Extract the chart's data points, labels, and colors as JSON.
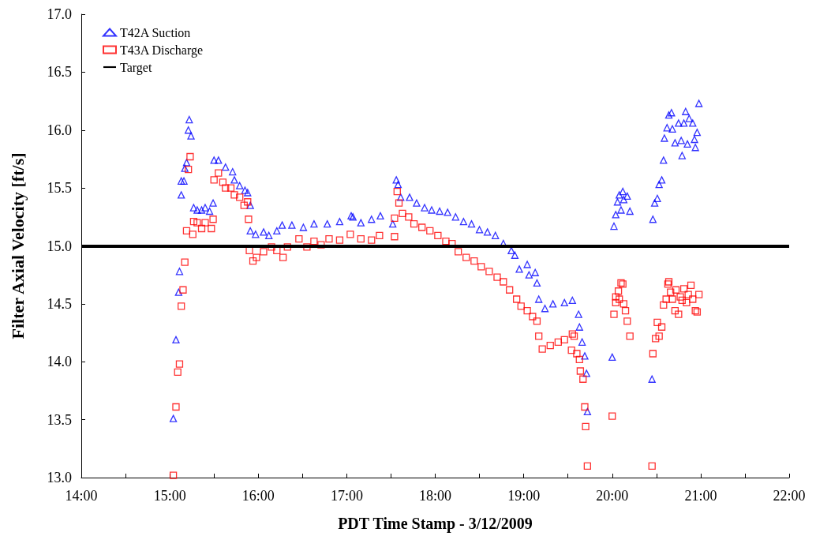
{
  "chart_data": {
    "type": "scatter",
    "xlabel": "PDT Time Stamp - 3/12/2009",
    "ylabel": "Filter Axial Velocity [ft/s]",
    "xlim": [
      14,
      22
    ],
    "xticks": [
      {
        "value": 14,
        "label": "14:00"
      },
      {
        "value": 14.5,
        "label": null
      },
      {
        "value": 15,
        "label": "15:00"
      },
      {
        "value": 15.5,
        "label": null
      },
      {
        "value": 16,
        "label": "16:00"
      },
      {
        "value": 16.5,
        "label": null
      },
      {
        "value": 17,
        "label": "17:00"
      },
      {
        "value": 17.5,
        "label": null
      },
      {
        "value": 18,
        "label": "18:00"
      },
      {
        "value": 18.5,
        "label": null
      },
      {
        "value": 19,
        "label": "19:00"
      },
      {
        "value": 19.5,
        "label": null
      },
      {
        "value": 20,
        "label": "20:00"
      },
      {
        "value": 20.5,
        "label": null
      },
      {
        "value": 21,
        "label": "21:00"
      },
      {
        "value": 21.5,
        "label": null
      },
      {
        "value": 22,
        "label": "22:00"
      }
    ],
    "ylim": [
      13,
      17
    ],
    "yticks": [
      {
        "value": 13,
        "label": "13.0"
      },
      13.5,
      {
        "value": 14,
        "label": "14.0"
      },
      14.5,
      {
        "value": 15,
        "label": "15.0"
      },
      15.5,
      {
        "value": 16,
        "label": "16.0"
      },
      16.5,
      {
        "value": 17,
        "label": "17.0"
      }
    ],
    "legend": "top left",
    "grid": false,
    "ref_lines": [
      {
        "axis": "y",
        "value": 15,
        "label": "Target",
        "color": "#000000"
      }
    ],
    "series": [
      {
        "name": "T42A Suction",
        "color": "#0000ff",
        "marker": "triangle",
        "x": [
          15.04,
          15.07,
          15.1,
          15.11,
          15.13,
          15.13,
          15.16,
          15.17,
          15.19,
          15.21,
          15.22,
          15.24,
          15.27,
          15.31,
          15.36,
          15.4,
          15.45,
          15.49,
          15.5,
          15.55,
          15.63,
          15.71,
          15.73,
          15.79,
          15.85,
          15.88,
          15.91,
          15.91,
          15.97,
          16.06,
          16.12,
          16.21,
          16.27,
          16.38,
          16.51,
          16.63,
          16.78,
          16.92,
          17.05,
          17.07,
          17.16,
          17.28,
          17.38,
          17.52,
          17.56,
          17.58,
          17.61,
          17.71,
          17.79,
          17.88,
          17.96,
          18.05,
          18.14,
          18.23,
          18.32,
          18.41,
          18.5,
          18.59,
          18.68,
          18.77,
          18.86,
          18.9,
          18.95,
          19.04,
          19.06,
          19.13,
          19.15,
          19.17,
          19.24,
          19.33,
          19.46,
          19.55,
          19.62,
          19.63,
          19.66,
          19.69,
          19.71,
          19.72,
          20.0,
          20.02,
          20.04,
          20.06,
          20.08,
          20.1,
          20.12,
          20.13,
          20.17,
          20.2,
          20.45,
          20.46,
          20.48,
          20.51,
          20.53,
          20.56,
          20.58,
          20.59,
          20.62,
          20.64,
          20.67,
          20.68,
          20.71,
          20.75,
          20.78,
          20.79,
          20.81,
          20.83,
          20.85,
          20.87,
          20.91,
          20.93,
          20.94,
          20.96,
          20.98
        ],
        "values": [
          13.51,
          14.19,
          14.6,
          14.78,
          15.44,
          15.56,
          15.56,
          15.67,
          15.72,
          16.0,
          16.09,
          15.95,
          15.33,
          15.31,
          15.31,
          15.33,
          15.3,
          15.37,
          15.74,
          15.74,
          15.68,
          15.64,
          15.57,
          15.52,
          15.48,
          15.46,
          15.35,
          15.13,
          15.1,
          15.12,
          15.09,
          15.13,
          15.18,
          15.18,
          15.16,
          15.19,
          15.19,
          15.21,
          15.26,
          15.25,
          15.2,
          15.23,
          15.26,
          15.19,
          15.57,
          15.53,
          15.42,
          15.42,
          15.37,
          15.33,
          15.31,
          15.3,
          15.29,
          15.25,
          15.21,
          15.19,
          15.14,
          15.12,
          15.09,
          15.02,
          14.96,
          14.92,
          14.8,
          14.84,
          14.75,
          14.77,
          14.68,
          14.54,
          14.46,
          14.5,
          14.51,
          14.53,
          14.41,
          14.3,
          14.17,
          14.05,
          13.9,
          13.57,
          14.04,
          15.17,
          15.27,
          15.38,
          15.44,
          15.31,
          15.47,
          15.4,
          15.43,
          15.3,
          13.85,
          15.23,
          15.37,
          15.41,
          15.53,
          15.57,
          15.74,
          15.93,
          16.02,
          16.13,
          16.15,
          16.01,
          15.89,
          16.06,
          15.91,
          15.78,
          16.06,
          16.16,
          15.88,
          16.1,
          16.06,
          15.92,
          15.85,
          15.98,
          16.23
        ]
      },
      {
        "name": "T43A Discharge",
        "color": "#ff0000",
        "marker": "square",
        "x": [
          15.04,
          15.07,
          15.09,
          15.11,
          15.13,
          15.15,
          15.17,
          15.19,
          15.21,
          15.23,
          15.26,
          15.27,
          15.31,
          15.36,
          15.4,
          15.47,
          15.49,
          15.5,
          15.55,
          15.6,
          15.63,
          15.69,
          15.73,
          15.79,
          15.84,
          15.88,
          15.89,
          15.9,
          15.94,
          15.98,
          16.06,
          16.15,
          16.21,
          16.28,
          16.33,
          16.46,
          16.55,
          16.63,
          16.71,
          16.8,
          16.92,
          17.04,
          17.16,
          17.28,
          17.37,
          17.54,
          17.54,
          17.57,
          17.59,
          17.63,
          17.7,
          17.76,
          17.85,
          17.94,
          18.03,
          18.12,
          18.19,
          18.26,
          18.35,
          18.44,
          18.52,
          18.61,
          18.7,
          18.77,
          18.84,
          18.92,
          18.97,
          19.04,
          19.1,
          19.15,
          19.17,
          19.21,
          19.3,
          19.39,
          19.46,
          19.55,
          19.57,
          19.54,
          19.6,
          19.63,
          19.64,
          19.67,
          19.69,
          19.7,
          19.72,
          20.0,
          20.02,
          20.04,
          20.04,
          20.07,
          20.1,
          20.12,
          20.08,
          20.13,
          20.15,
          20.17,
          20.2,
          20.45,
          20.46,
          20.49,
          20.53,
          20.51,
          20.56,
          20.58,
          20.61,
          20.63,
          20.64,
          20.66,
          20.68,
          20.71,
          20.72,
          20.75,
          20.77,
          20.79,
          20.81,
          20.84,
          20.86,
          20.89,
          20.91,
          20.94,
          20.96,
          20.98
        ],
        "values": [
          13.02,
          13.61,
          13.91,
          13.98,
          14.48,
          14.62,
          14.86,
          15.13,
          15.66,
          15.77,
          15.1,
          15.21,
          15.2,
          15.15,
          15.2,
          15.15,
          15.23,
          15.57,
          15.63,
          15.55,
          15.5,
          15.5,
          15.44,
          15.42,
          15.35,
          15.38,
          15.23,
          14.96,
          14.87,
          14.9,
          14.95,
          14.99,
          14.96,
          14.9,
          14.99,
          15.06,
          14.99,
          15.04,
          15.01,
          15.06,
          15.05,
          15.1,
          15.06,
          15.05,
          15.09,
          15.08,
          15.24,
          15.47,
          15.37,
          15.28,
          15.25,
          15.19,
          15.16,
          15.13,
          15.09,
          15.04,
          15.02,
          14.95,
          14.9,
          14.87,
          14.82,
          14.78,
          14.73,
          14.69,
          14.62,
          14.54,
          14.48,
          14.44,
          14.39,
          14.35,
          14.22,
          14.11,
          14.14,
          14.17,
          14.19,
          14.24,
          14.22,
          14.1,
          14.07,
          14.02,
          13.92,
          13.85,
          13.61,
          13.44,
          13.1,
          13.53,
          14.41,
          14.51,
          14.56,
          14.61,
          14.68,
          14.67,
          14.54,
          14.5,
          14.44,
          14.35,
          14.22,
          13.1,
          14.07,
          14.2,
          14.22,
          14.34,
          14.3,
          14.49,
          14.54,
          14.67,
          14.69,
          14.6,
          14.54,
          14.44,
          14.62,
          14.41,
          14.56,
          14.53,
          14.63,
          14.51,
          14.58,
          14.66,
          14.54,
          14.44,
          14.43,
          14.58
        ]
      }
    ]
  }
}
